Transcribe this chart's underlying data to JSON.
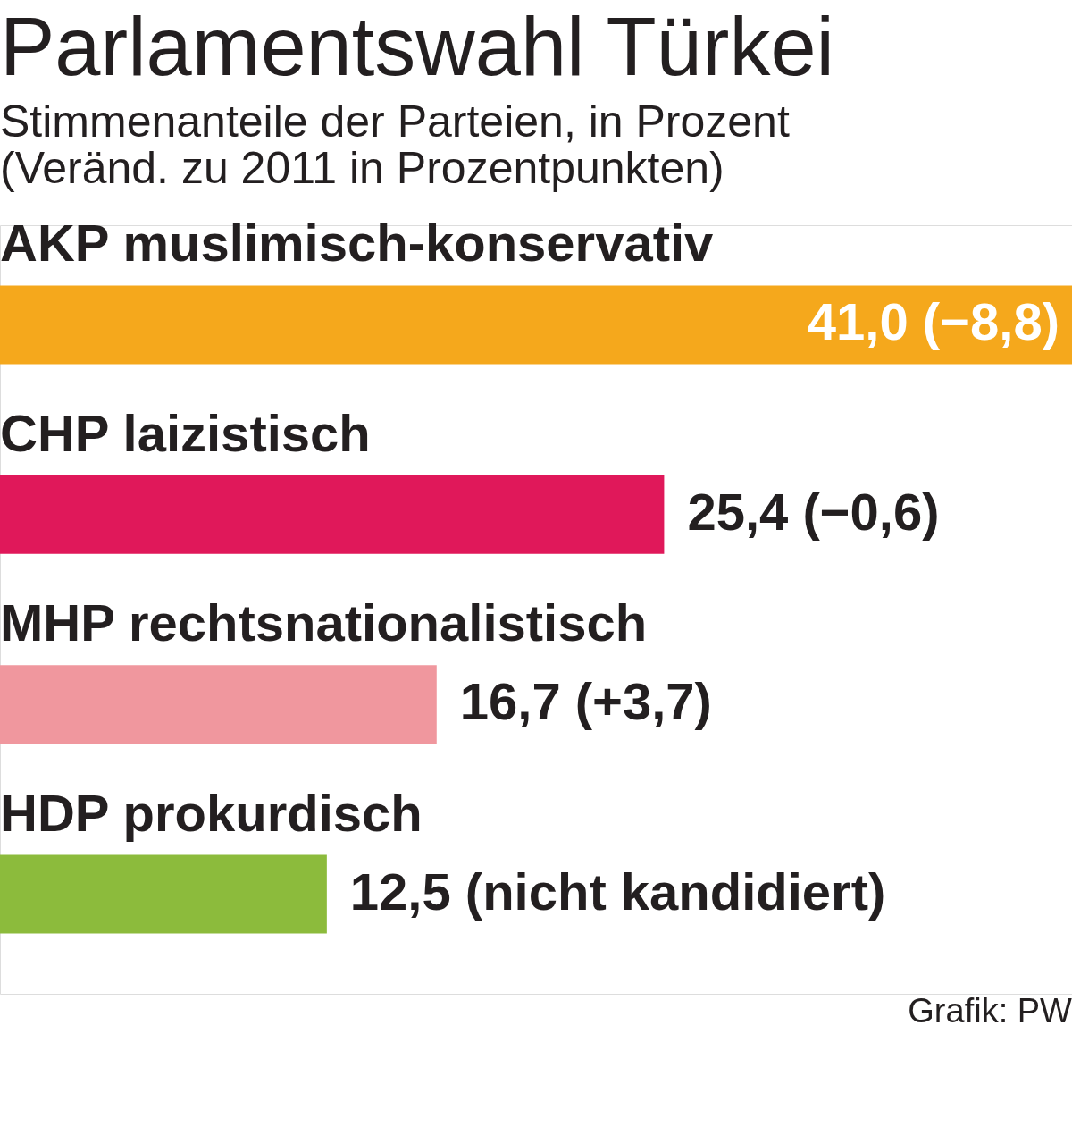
{
  "chart_data": {
    "type": "bar",
    "orientation": "horizontal",
    "title": "Parlamentswahl Türkei",
    "subtitle": "Stimmenanteile der Parteien, in Prozent (Veränd. zu 2011 in Prozentpunkten)",
    "categories": [
      "AKP muslimisch-konservativ",
      "CHP laizistisch",
      "MHP rechtsnationalistisch",
      "HDP prokurdisch"
    ],
    "values": [
      41.0,
      25.4,
      16.7,
      12.5
    ],
    "colors": [
      "#f5a81c",
      "#e0185a",
      "#f0979e",
      "#8cbb3c"
    ],
    "value_labels": [
      "41,0 (−8,8)",
      "25,4 (−0,6)",
      "16,7 (+3,7)",
      "12,5 (nicht kandidiert)"
    ],
    "annotations": [
      "Grafik: PW"
    ],
    "tick_labels": false
  }
}
